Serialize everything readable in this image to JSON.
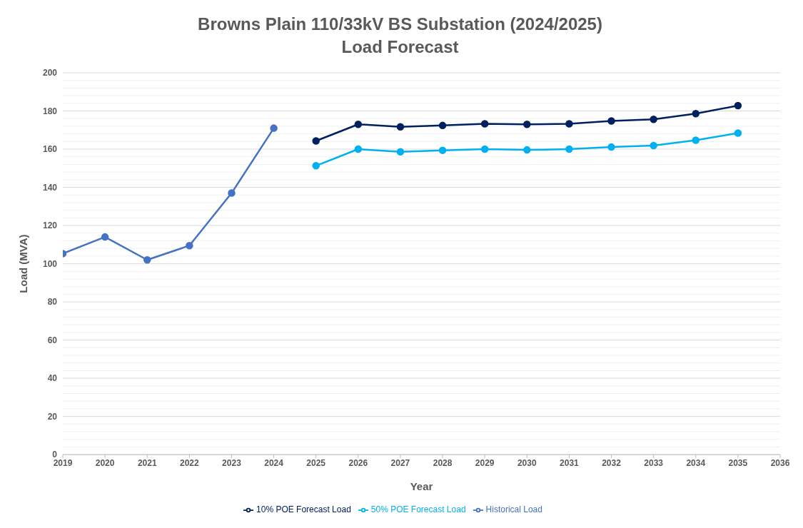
{
  "chart_data": {
    "type": "line",
    "title": "Browns Plain 110/33kV BS Substation (2024/2025)\nLoad Forecast",
    "xlabel": "Year",
    "ylabel": "Load (MVA)",
    "series": [
      {
        "name": "Historical Load",
        "color": "#4472c4",
        "x": [
          2019,
          2020,
          2021,
          2022,
          2023,
          2024
        ],
        "values": [
          105.3,
          114,
          102,
          109.5,
          137,
          171
        ]
      },
      {
        "name": "50% POE Forecast Load",
        "color": "#00b0f0",
        "x": [
          2025,
          2026,
          2027,
          2028,
          2029,
          2030,
          2031,
          2032,
          2033,
          2034,
          2035
        ],
        "values": [
          151.3,
          160,
          158.6,
          159.4,
          160,
          159.6,
          160,
          161.1,
          161.9,
          164.7,
          168.4
        ]
      },
      {
        "name": "10% POE Forecast Load",
        "color": "#002060",
        "x": [
          2025,
          2026,
          2027,
          2028,
          2029,
          2030,
          2031,
          2032,
          2033,
          2034,
          2035
        ],
        "values": [
          164.3,
          173,
          171.7,
          172.4,
          173.3,
          173,
          173.3,
          174.8,
          175.6,
          178.6,
          182.8
        ]
      }
    ],
    "xlim": [
      2019,
      2036
    ],
    "xticks": [
      2019,
      2020,
      2021,
      2022,
      2023,
      2024,
      2025,
      2026,
      2027,
      2028,
      2029,
      2030,
      2031,
      2032,
      2033,
      2034,
      2035,
      2036
    ],
    "ylim": [
      0,
      200
    ],
    "yticks": [
      0,
      20,
      40,
      60,
      80,
      100,
      120,
      140,
      160,
      180,
      200
    ],
    "grid": "y",
    "legend": "bottom",
    "marker": "circle",
    "line_style": "solid"
  }
}
